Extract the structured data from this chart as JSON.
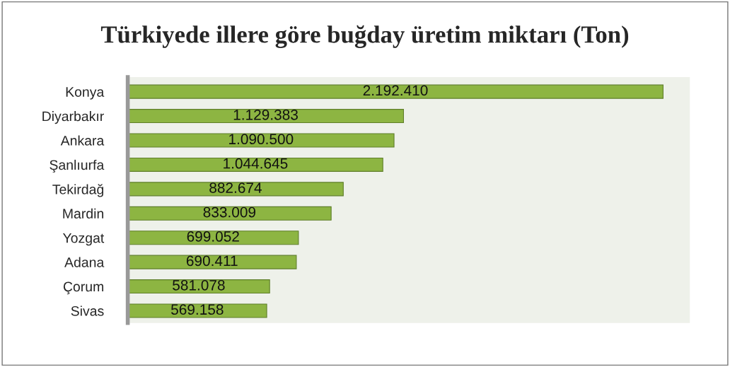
{
  "chart_data": {
    "type": "bar",
    "orientation": "horizontal",
    "title": "Türkiyede illere göre buğday üretim miktarı (Ton)",
    "categories": [
      "Konya",
      "Diyarbakır",
      "Ankara",
      "Şanlıurfa",
      "Tekirdağ",
      "Mardin",
      "Yozgat",
      "Adana",
      "Çorum",
      "Sivas"
    ],
    "values": [
      2192410,
      1129383,
      1090500,
      1044645,
      882674,
      833009,
      699052,
      690411,
      581078,
      569158
    ],
    "value_labels": [
      "2.192.410",
      "1.129.383",
      "1.090.500",
      "1.044.645",
      "882.674",
      "833.009",
      "699.052",
      "690.411",
      "581.078",
      "569.158"
    ],
    "color": "#8db542",
    "tick_labels": "y",
    "grid": false,
    "legend": false
  }
}
